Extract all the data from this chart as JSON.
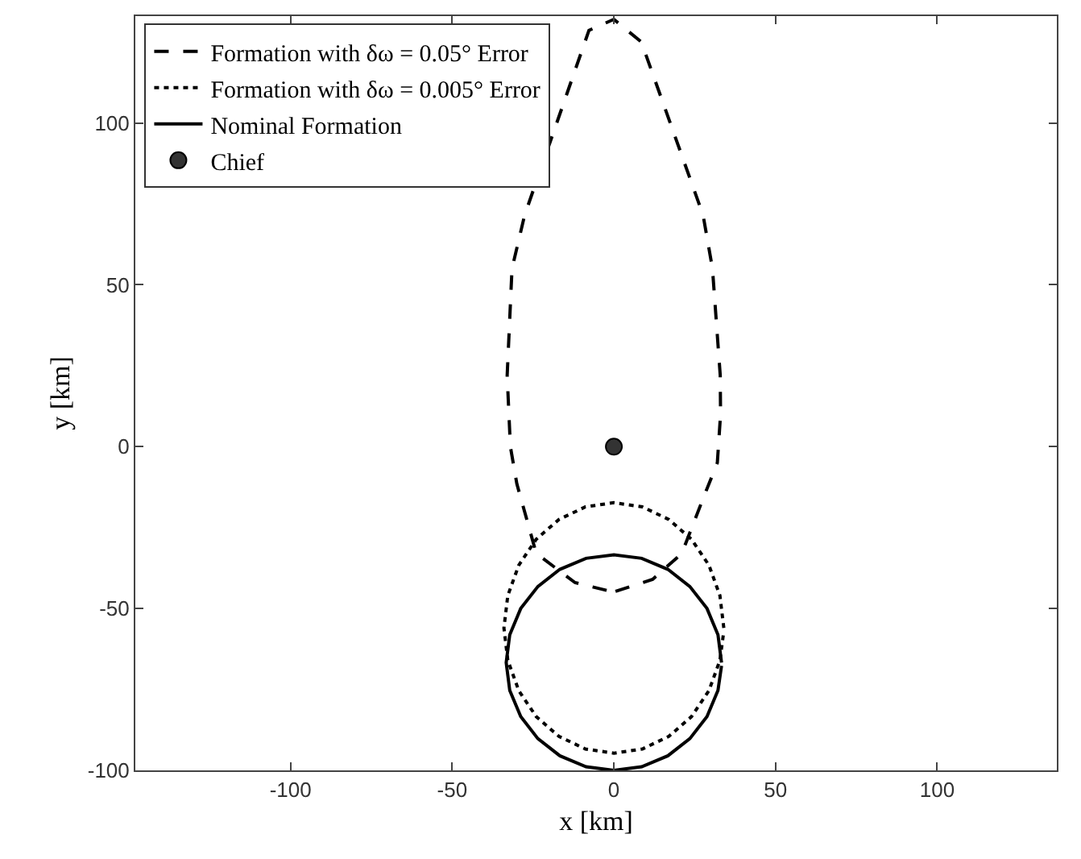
{
  "chart_data": {
    "type": "line",
    "xlabel": "x [km]",
    "ylabel": "y [km]",
    "xlim": [
      -148,
      137
    ],
    "ylim": [
      -100,
      133
    ],
    "xticks": [
      -100,
      -50,
      0,
      50,
      100
    ],
    "yticks": [
      -100,
      -50,
      0,
      50,
      100
    ],
    "grid": false,
    "legend": "top left",
    "series": [
      {
        "name": "Formation with δω = 0.05° Error",
        "line_style": "dashed",
        "color": "#000000",
        "x": [
          0.5,
          12,
          21,
          28,
          32,
          33,
          32.9,
          30.5,
          27.6,
          8.5,
          0,
          -7.7,
          -27.6,
          -31.5,
          -33,
          -32,
          -30,
          -24,
          -12,
          -1
        ],
        "values": [
          -44.7,
          -41,
          -33,
          -15,
          -5,
          10,
          22,
          55,
          71.5,
          125,
          132,
          128.6,
          71.5,
          55,
          22,
          0,
          -11.5,
          -33,
          -42,
          -44.7
        ]
      },
      {
        "name": "Formation with δω = 0.005° Error",
        "line_style": "dotted",
        "color": "#000000",
        "x": [
          34,
          32.8,
          29.4,
          24,
          17,
          8.8,
          0,
          -8.8,
          -17,
          -24,
          -29.4,
          -32.8,
          -34,
          -32.8,
          -29.4,
          -24,
          -17,
          -8.8,
          0,
          8.8,
          17,
          24,
          29.4,
          32.8,
          34
        ],
        "values": [
          -56,
          -46,
          -36.6,
          -28.6,
          -22.5,
          -18.6,
          -17.3,
          -18.6,
          -22.5,
          -28.6,
          -36.6,
          -46,
          -56,
          -66,
          -75.4,
          -83.4,
          -89.5,
          -93.4,
          -94.7,
          -93.4,
          -89.5,
          -83.4,
          -75.4,
          -66,
          -57
        ]
      },
      {
        "name": "Nominal Formation",
        "line_style": "solid",
        "color": "#000000",
        "x": [
          33.3,
          32.2,
          28.8,
          23.5,
          16.7,
          8.6,
          0,
          -8.6,
          -16.7,
          -23.5,
          -28.8,
          -32.2,
          -33.3,
          -32.2,
          -28.8,
          -23.5,
          -16.7,
          -8.6,
          0,
          8.6,
          16.7,
          23.5,
          28.8,
          32.2,
          33.3
        ],
        "values": [
          -66.7,
          -58.1,
          -50,
          -43.2,
          -37.9,
          -34.5,
          -33.4,
          -34.5,
          -37.9,
          -43.2,
          -50,
          -58.1,
          -66.7,
          -75.3,
          -83.4,
          -90.2,
          -95.5,
          -98.9,
          -100,
          -98.9,
          -95.5,
          -90.2,
          -83.4,
          -75.3,
          -67.7
        ]
      },
      {
        "name": "Chief",
        "type": "scatter",
        "marker": "circle",
        "color": "#333333",
        "x": [
          0
        ],
        "values": [
          0
        ]
      }
    ]
  }
}
